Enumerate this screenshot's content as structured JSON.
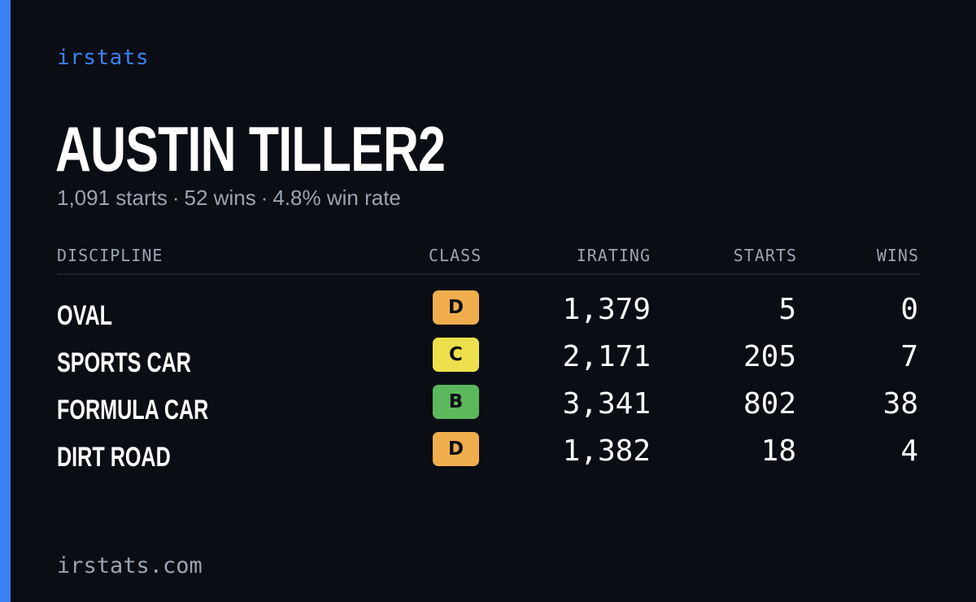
{
  "brand": "irstats",
  "driver": {
    "name": "AUSTIN TILLER2",
    "starts_text": "1,091 starts",
    "wins_text": "52 wins",
    "winrate_text": "4.8% win rate",
    "separator": "·"
  },
  "table": {
    "headers": {
      "discipline": "DISCIPLINE",
      "class": "CLASS",
      "irating": "IRATING",
      "starts": "STARTS",
      "wins": "WINS"
    },
    "rows": [
      {
        "discipline": "OVAL",
        "class": "D",
        "class_color": "#f0ad4e",
        "irating": "1,379",
        "starts": "5",
        "wins": "0"
      },
      {
        "discipline": "SPORTS CAR",
        "class": "C",
        "class_color": "#ede04c",
        "irating": "2,171",
        "starts": "205",
        "wins": "7"
      },
      {
        "discipline": "FORMULA CAR",
        "class": "B",
        "class_color": "#5cb85c",
        "irating": "3,341",
        "starts": "802",
        "wins": "38"
      },
      {
        "discipline": "DIRT ROAD",
        "class": "D",
        "class_color": "#f0ad4e",
        "irating": "1,382",
        "starts": "18",
        "wins": "4"
      }
    ]
  },
  "footer": "irstats.com",
  "colors": {
    "background": "#0a0d14",
    "accent": "#3b82f6",
    "muted": "#9aa4b2"
  }
}
